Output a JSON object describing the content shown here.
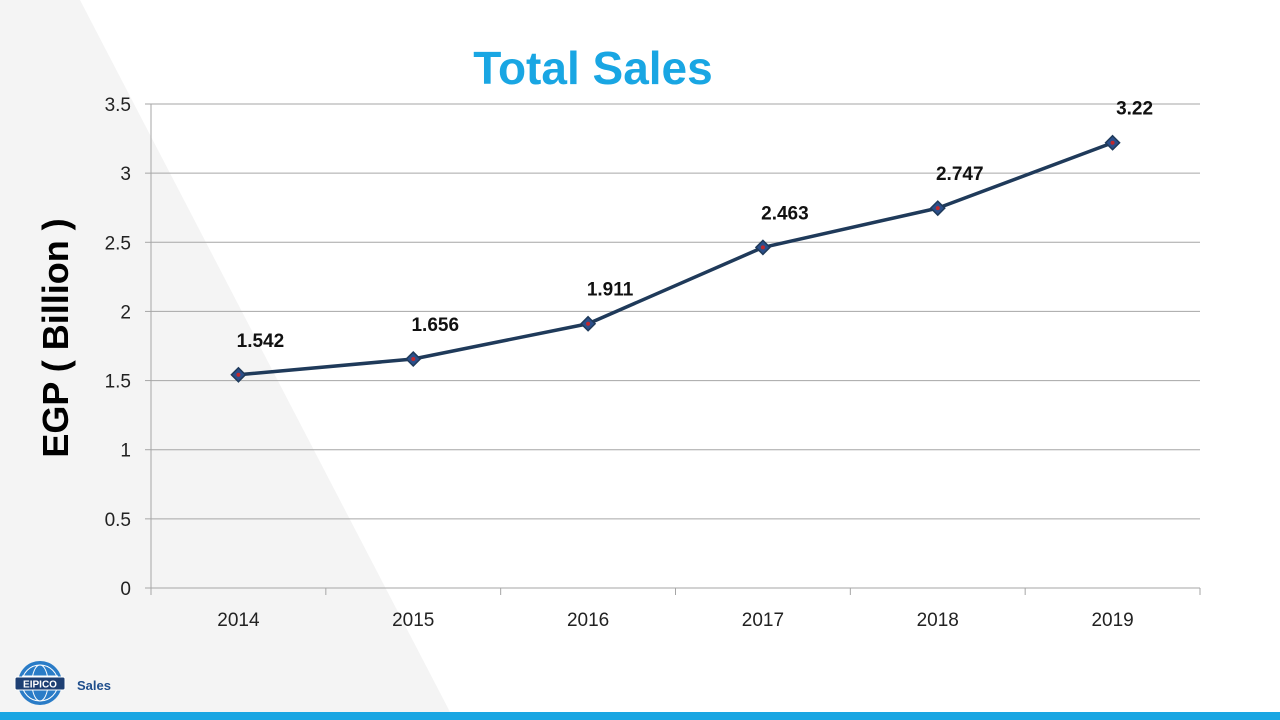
{
  "colors": {
    "title": "#19a6e3",
    "line": "#1f3a5a",
    "marker_dot": "#c0282d",
    "grid": "#a6a6a6",
    "footer_bar": "#19a6e3",
    "footer_text": "#1f4e8c"
  },
  "logo": {
    "icon": "globe-logo-icon",
    "text": "EIPICO"
  },
  "footer": {
    "label": "Sales"
  },
  "chart_data": {
    "type": "line",
    "title": "Total Sales",
    "xlabel": "",
    "ylabel": "EGP ( Billion )",
    "categories": [
      "2014",
      "2015",
      "2016",
      "2017",
      "2018",
      "2019"
    ],
    "series": [
      {
        "values": [
          1.542,
          1.656,
          1.911,
          2.463,
          2.747,
          3.22
        ],
        "marker": "diamond"
      }
    ],
    "data_labels": [
      "1.542",
      "1.656",
      "1.911",
      "2.463",
      "2.747",
      "3.22"
    ],
    "ylim": [
      0,
      3.5
    ],
    "yticks": [
      "0",
      "0.5",
      "1",
      "1.5",
      "2",
      "2.5",
      "3",
      "3.5"
    ],
    "grid": true,
    "legend": "none"
  }
}
